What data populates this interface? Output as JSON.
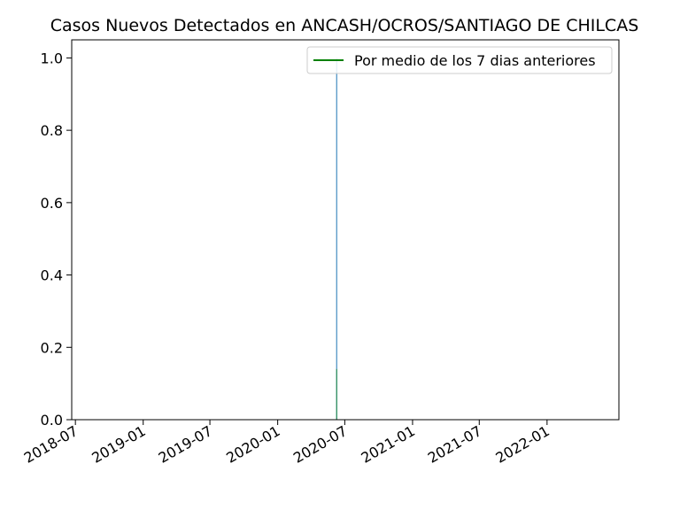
{
  "chart_data": {
    "type": "line",
    "title": "Casos Nuevos Detectados en ANCASH/OCROS/SANTIAGO DE CHILCAS",
    "xlabel": "",
    "ylabel": "",
    "x_axis": {
      "type": "date",
      "range": [
        "2018-06-21",
        "2022-07-15"
      ],
      "ticks": [
        "2018-07",
        "2019-01",
        "2019-07",
        "2020-01",
        "2020-07",
        "2021-01",
        "2021-07",
        "2022-01"
      ]
    },
    "y_axis": {
      "range": [
        0,
        1.05
      ],
      "ticks": [
        "0.0",
        "0.2",
        "0.4",
        "0.6",
        "0.8",
        "1.0"
      ]
    },
    "series": [
      {
        "name": "",
        "kind": "bar",
        "color": "#1f77b4",
        "points": [
          {
            "x": "2020-06-09",
            "y": 1
          }
        ]
      },
      {
        "name": "Por medio de los 7 dias anteriores",
        "kind": "line",
        "color": "#008000",
        "points": [
          {
            "x": "2020-06-09",
            "y": 0.14
          }
        ]
      }
    ],
    "legend": {
      "placement": "top-right",
      "entries": [
        "Por medio de los 7 dias anteriores"
      ]
    },
    "grid": false
  }
}
